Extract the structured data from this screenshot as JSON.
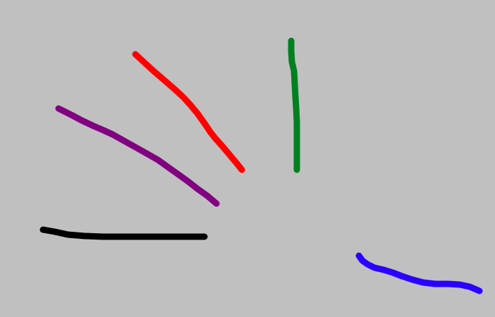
{
  "canvas": {
    "background_color": "#c0c0c0"
  },
  "strokes": [
    {
      "name": "red-stroke",
      "color": "#ff0000"
    },
    {
      "name": "green-stroke",
      "color": "#008020"
    },
    {
      "name": "purple-stroke",
      "color": "#800080"
    },
    {
      "name": "black-stroke",
      "color": "#000000"
    },
    {
      "name": "blue-stroke",
      "color": "#2a00ff"
    }
  ]
}
